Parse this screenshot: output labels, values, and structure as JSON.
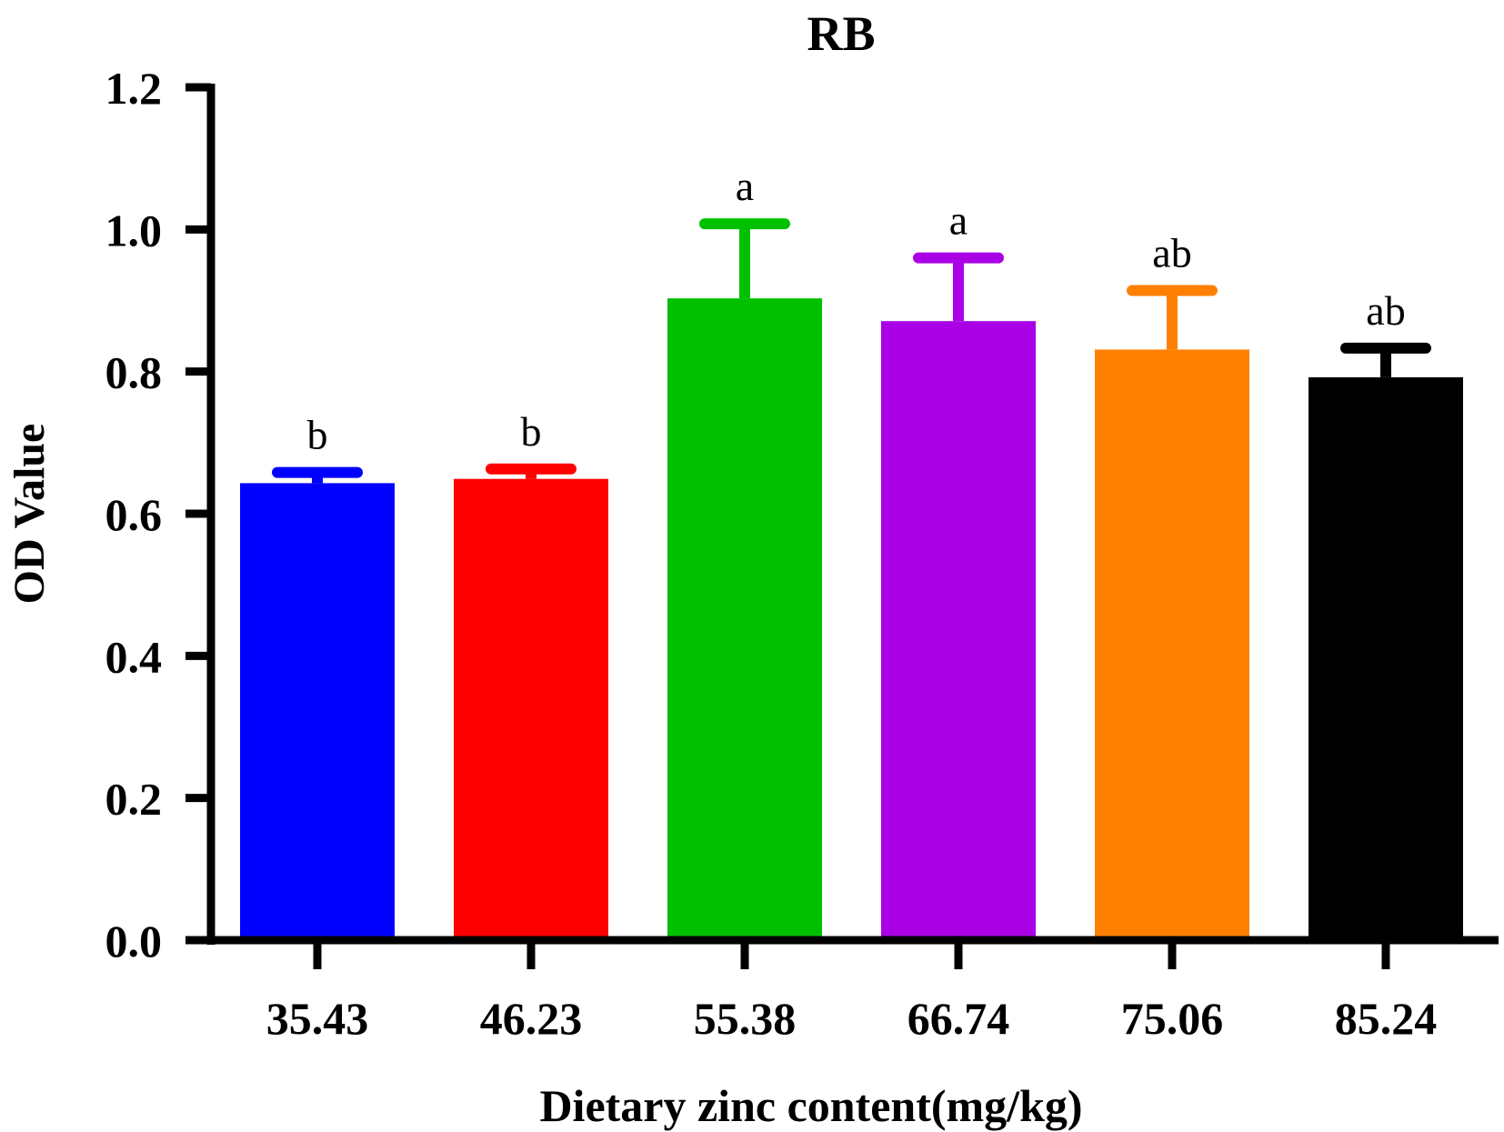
{
  "chart_data": {
    "type": "bar",
    "title": "RB",
    "xlabel": "Dietary zinc content(mg/kg)",
    "ylabel": "OD Value",
    "ylim": [
      0,
      1.2
    ],
    "yticks": [
      "0.0",
      "0.2",
      "0.4",
      "0.6",
      "0.8",
      "1.0",
      "1.2"
    ],
    "categories": [
      "35.43",
      "46.23",
      "55.38",
      "66.74",
      "75.06",
      "85.24"
    ],
    "values": [
      0.643,
      0.649,
      0.903,
      0.871,
      0.831,
      0.792
    ],
    "errors": [
      0.015,
      0.014,
      0.105,
      0.089,
      0.083,
      0.041
    ],
    "significance": [
      "b",
      "b",
      "a",
      "a",
      "ab",
      "ab"
    ],
    "colors": [
      "#0000ff",
      "#ff0000",
      "#00c000",
      "#aa00e6",
      "#ff8000",
      "#000000"
    ],
    "grid": false,
    "legend": "none"
  }
}
